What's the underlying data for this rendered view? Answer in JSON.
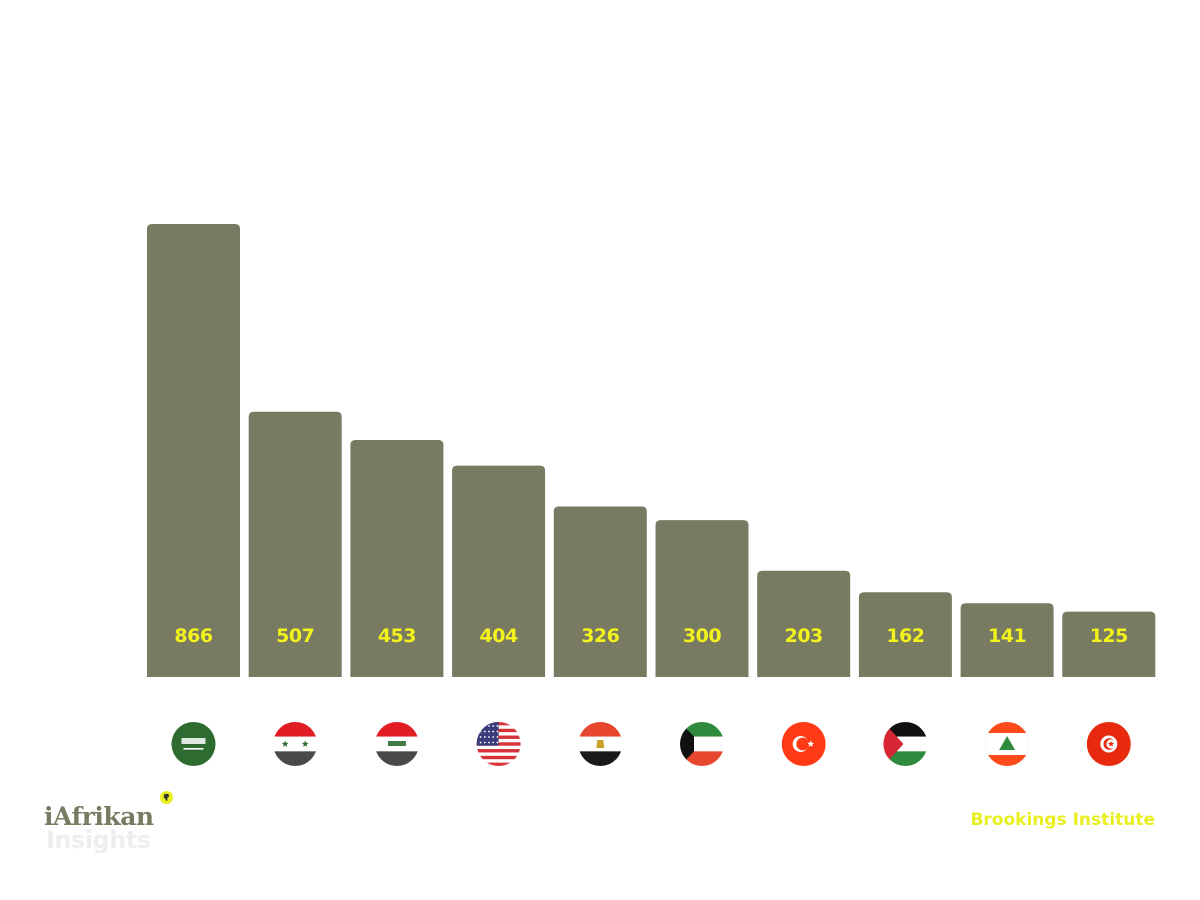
{
  "chart_data": {
    "type": "bar",
    "title": "",
    "xlabel": "",
    "ylabel": "",
    "ylim": [
      0,
      866
    ],
    "categories": [
      "Saudi Arabia",
      "Syria",
      "Iraq",
      "United States",
      "Egypt",
      "Kuwait",
      "Turkey",
      "Palestine",
      "Lebanon",
      "Tunisia"
    ],
    "values": [
      866,
      507,
      453,
      404,
      326,
      300,
      203,
      162,
      141,
      125
    ],
    "flag_icons": [
      "saudi-arabia-flag-icon",
      "syria-flag-icon",
      "iraq-flag-icon",
      "usa-flag-icon",
      "egypt-flag-icon",
      "kuwait-flag-icon",
      "turkey-flag-icon",
      "palestine-flag-icon",
      "lebanon-flag-icon",
      "tunisia-flag-icon"
    ]
  },
  "colors": {
    "bar": "#787a62",
    "label": "#f2f21c",
    "source": "#e8ef1c"
  },
  "brand": {
    "logo_main": "iAfrikan",
    "logo_sub": "Insights"
  },
  "source_text": "Brookings Institute"
}
